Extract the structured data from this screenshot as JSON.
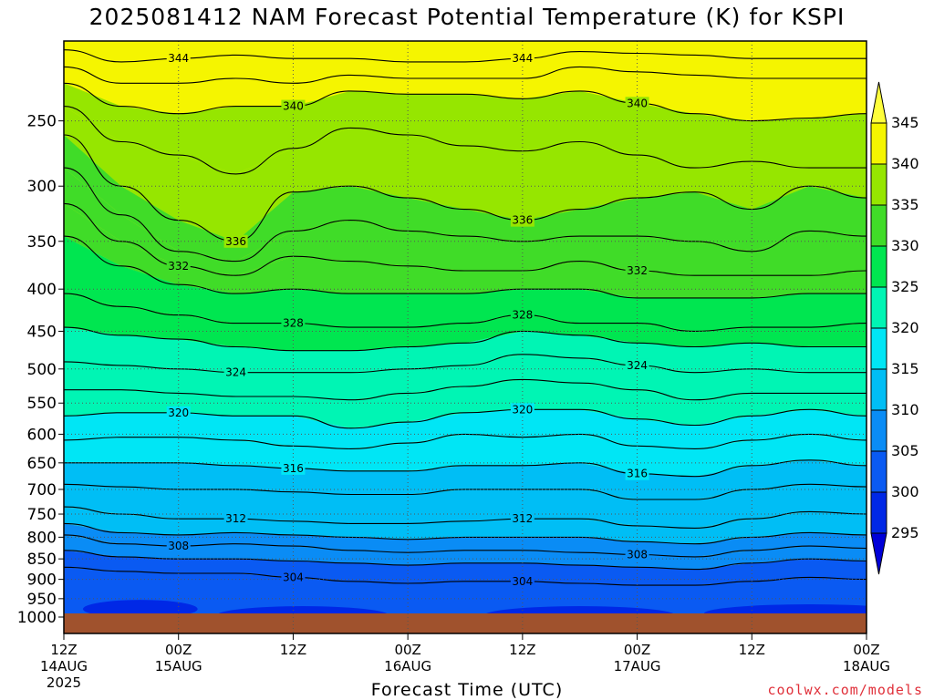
{
  "title": "2025081412 NAM Forecast Potential Temperature (K) for KSPI",
  "xlabel": "Forecast Time (UTC)",
  "credit": "coolwx.com/models",
  "chart_data": {
    "type": "area",
    "y_axis": {
      "scale": "log",
      "inverted": true,
      "range": [
        1000,
        200
      ],
      "ticks": [
        250,
        300,
        350,
        400,
        450,
        500,
        550,
        600,
        650,
        700,
        750,
        800,
        850,
        900,
        950,
        1000
      ]
    },
    "x_axis": {
      "range_hours": [
        0,
        84
      ],
      "ticks": [
        {
          "h": 0,
          "label": "12Z",
          "sub": "14AUG",
          "sub2": "2025"
        },
        {
          "h": 12,
          "label": "00Z",
          "sub": "15AUG",
          "sub2": ""
        },
        {
          "h": 24,
          "label": "12Z",
          "sub": "",
          "sub2": ""
        },
        {
          "h": 36,
          "label": "00Z",
          "sub": "16AUG",
          "sub2": ""
        },
        {
          "h": 48,
          "label": "12Z",
          "sub": "",
          "sub2": ""
        },
        {
          "h": 60,
          "label": "00Z",
          "sub": "17AUG",
          "sub2": ""
        },
        {
          "h": 72,
          "label": "12Z",
          "sub": "",
          "sub2": ""
        },
        {
          "h": 84,
          "label": "00Z",
          "sub": "18AUG",
          "sub2": ""
        }
      ]
    },
    "grid": "dotted",
    "colorbar": {
      "levels": [
        295,
        300,
        305,
        310,
        315,
        320,
        325,
        330,
        335,
        340,
        345
      ],
      "colors": [
        "#0000d8",
        "#0028e6",
        "#0a5af2",
        "#0a8cf5",
        "#00bef5",
        "#00e6f5",
        "#00f5b4",
        "#00e650",
        "#40dc28",
        "#96e600",
        "#f5f500",
        "#ffff3c"
      ]
    },
    "isentropes": [
      {
        "theta": 344,
        "p": [
          205,
          212,
          210,
          208,
          210,
          210,
          212,
          212,
          210,
          206,
          207,
          208,
          210,
          210,
          210
        ]
      },
      {
        "theta": 342,
        "p": [
          215,
          225,
          225,
          222,
          225,
          220,
          222,
          222,
          222,
          215,
          218,
          220,
          222,
          222,
          222
        ]
      },
      {
        "theta": 340,
        "p": [
          225,
          240,
          245,
          240,
          240,
          230,
          232,
          232,
          235,
          230,
          238,
          245,
          250,
          248,
          245
        ]
      },
      {
        "theta": 338,
        "p": [
          240,
          265,
          275,
          290,
          270,
          255,
          260,
          268,
          272,
          265,
          275,
          285,
          280,
          285,
          285
        ]
      },
      {
        "theta": 336,
        "p": [
          260,
          300,
          330,
          350,
          305,
          300,
          310,
          320,
          330,
          320,
          310,
          305,
          320,
          300,
          310
        ]
      },
      {
        "theta": 334,
        "p": [
          285,
          325,
          360,
          370,
          340,
          330,
          340,
          345,
          350,
          345,
          345,
          350,
          360,
          340,
          345
        ]
      },
      {
        "theta": 332,
        "p": [
          315,
          350,
          375,
          385,
          365,
          370,
          375,
          380,
          380,
          370,
          380,
          385,
          385,
          385,
          380
        ]
      },
      {
        "theta": 330,
        "p": [
          345,
          375,
          395,
          405,
          400,
          405,
          405,
          405,
          400,
          400,
          410,
          410,
          410,
          405,
          405
        ]
      },
      {
        "theta": 328,
        "p": [
          405,
          420,
          430,
          440,
          440,
          445,
          445,
          440,
          430,
          440,
          440,
          450,
          445,
          445,
          440
        ]
      },
      {
        "theta": 326,
        "p": [
          445,
          455,
          460,
          470,
          475,
          475,
          470,
          465,
          450,
          455,
          465,
          470,
          465,
          470,
          470
        ]
      },
      {
        "theta": 324,
        "p": [
          490,
          495,
          500,
          505,
          505,
          505,
          500,
          495,
          480,
          485,
          495,
          505,
          500,
          505,
          505
        ]
      },
      {
        "theta": 322,
        "p": [
          530,
          530,
          535,
          540,
          540,
          545,
          535,
          525,
          515,
          520,
          530,
          545,
          535,
          535,
          535
        ]
      },
      {
        "theta": 320,
        "p": [
          570,
          565,
          565,
          570,
          570,
          590,
          580,
          565,
          560,
          560,
          575,
          585,
          570,
          560,
          570
        ]
      },
      {
        "theta": 318,
        "p": [
          610,
          605,
          605,
          610,
          620,
          625,
          615,
          600,
          605,
          600,
          620,
          625,
          610,
          600,
          610
        ]
      },
      {
        "theta": 316,
        "p": [
          650,
          650,
          650,
          655,
          660,
          665,
          665,
          655,
          655,
          650,
          670,
          675,
          655,
          645,
          655
        ]
      },
      {
        "theta": 314,
        "p": [
          690,
          695,
          700,
          700,
          705,
          710,
          710,
          700,
          700,
          700,
          720,
          720,
          700,
          690,
          695
        ]
      },
      {
        "theta": 312,
        "p": [
          735,
          750,
          760,
          760,
          765,
          770,
          770,
          765,
          760,
          760,
          775,
          780,
          760,
          745,
          750
        ]
      },
      {
        "theta": 310,
        "p": [
          770,
          790,
          795,
          790,
          795,
          800,
          805,
          800,
          800,
          800,
          810,
          815,
          800,
          790,
          795
        ]
      },
      {
        "theta": 308,
        "p": [
          795,
          815,
          820,
          815,
          820,
          830,
          835,
          830,
          830,
          835,
          840,
          845,
          830,
          820,
          825
        ]
      },
      {
        "theta": 306,
        "p": [
          830,
          845,
          850,
          850,
          855,
          860,
          865,
          860,
          860,
          865,
          870,
          875,
          860,
          850,
          855
        ]
      },
      {
        "theta": 304,
        "p": [
          870,
          880,
          885,
          885,
          895,
          905,
          910,
          905,
          905,
          910,
          915,
          915,
          905,
          895,
          900
        ]
      }
    ]
  }
}
